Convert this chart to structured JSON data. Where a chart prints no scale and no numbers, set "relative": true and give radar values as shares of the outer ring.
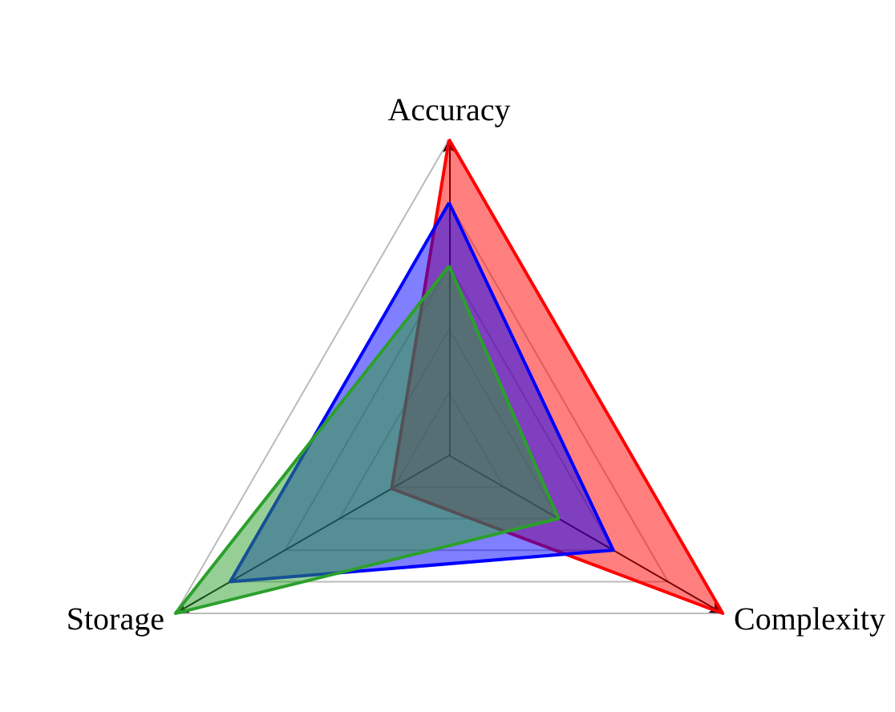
{
  "chart_data": {
    "type": "radar",
    "relative": true,
    "categories": [
      "Accuracy",
      "Complexity",
      "Storage"
    ],
    "series": [
      {
        "color": "#ff0000",
        "values": [
          1.0,
          1.0,
          0.21
        ]
      },
      {
        "color": "#0000ff",
        "values": [
          0.8,
          0.6,
          0.8
        ]
      },
      {
        "color": "#2ca02c",
        "values": [
          0.6,
          0.4,
          1.0
        ]
      }
    ]
  }
}
